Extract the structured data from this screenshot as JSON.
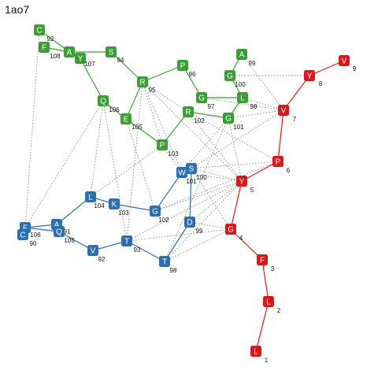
{
  "title": "1ao7",
  "colors": {
    "green": "#3a9e35",
    "red": "#d7191c",
    "blue": "#2c6fb0",
    "dotted": "#888888"
  },
  "nodes": [
    {
      "id": "g92",
      "letter": "C",
      "num": "92",
      "group": "green"
    },
    {
      "id": "g108",
      "letter": "F",
      "num": "108",
      "group": "green"
    },
    {
      "id": "g91",
      "letter": "A",
      "num": "91",
      "group": "green"
    },
    {
      "id": "g107",
      "letter": "Y",
      "num": "107",
      "group": "green"
    },
    {
      "id": "g94",
      "letter": "S",
      "num": "94",
      "group": "green"
    },
    {
      "id": "g96",
      "letter": "P",
      "num": "96",
      "group": "green"
    },
    {
      "id": "g95",
      "letter": "R",
      "num": "95",
      "group": "green"
    },
    {
      "id": "g106",
      "letter": "Q",
      "num": "106",
      "group": "green"
    },
    {
      "id": "g105",
      "letter": "E",
      "num": "105",
      "group": "green"
    },
    {
      "id": "g103",
      "letter": "P",
      "num": "103",
      "group": "green"
    },
    {
      "id": "g102",
      "letter": "R",
      "num": "102",
      "group": "green"
    },
    {
      "id": "g97",
      "letter": "G",
      "num": "97",
      "group": "green"
    },
    {
      "id": "g99",
      "letter": "A",
      "num": "99",
      "group": "green"
    },
    {
      "id": "g100",
      "letter": "G",
      "num": "100",
      "group": "green"
    },
    {
      "id": "g98",
      "letter": "L",
      "num": "98",
      "group": "green"
    },
    {
      "id": "g101",
      "letter": "G",
      "num": "101",
      "group": "green"
    },
    {
      "id": "r9",
      "letter": "V",
      "num": "9",
      "group": "red"
    },
    {
      "id": "r8",
      "letter": "Y",
      "num": "8",
      "group": "red"
    },
    {
      "id": "r7",
      "letter": "V",
      "num": "7",
      "group": "red"
    },
    {
      "id": "r6",
      "letter": "P",
      "num": "6",
      "group": "red"
    },
    {
      "id": "r5",
      "letter": "Y",
      "num": "5",
      "group": "red"
    },
    {
      "id": "r4",
      "letter": "G",
      "num": "4",
      "group": "red"
    },
    {
      "id": "r3",
      "letter": "F",
      "num": "3",
      "group": "red"
    },
    {
      "id": "r2",
      "letter": "L",
      "num": "2",
      "group": "red"
    },
    {
      "id": "r1",
      "letter": "L",
      "num": "1",
      "group": "red"
    },
    {
      "id": "b100",
      "letter": "S",
      "num": "100",
      "group": "blue"
    },
    {
      "id": "b101",
      "letter": "W",
      "num": "101",
      "group": "blue"
    },
    {
      "id": "b104",
      "letter": "L",
      "num": "104",
      "group": "blue"
    },
    {
      "id": "b103",
      "letter": "K",
      "num": "103",
      "group": "blue"
    },
    {
      "id": "b102",
      "letter": "G",
      "num": "102",
      "group": "blue"
    },
    {
      "id": "b99",
      "letter": "D",
      "num": "99",
      "group": "blue"
    },
    {
      "id": "b106",
      "letter": "F",
      "num": "106",
      "group": "blue"
    },
    {
      "id": "b90",
      "letter": "C",
      "num": "90",
      "group": "blue"
    },
    {
      "id": "b91",
      "letter": "A",
      "num": "91",
      "group": "blue"
    },
    {
      "id": "b105",
      "letter": "Q",
      "num": "105",
      "group": "blue"
    },
    {
      "id": "b92",
      "letter": "V",
      "num": "92",
      "group": "blue"
    },
    {
      "id": "b93",
      "letter": "T",
      "num": "93",
      "group": "blue"
    },
    {
      "id": "b98",
      "letter": "T",
      "num": "98",
      "group": "blue"
    }
  ],
  "solid_edges": [
    [
      "g92",
      "g91"
    ],
    [
      "g108",
      "g91"
    ],
    [
      "g91",
      "g107"
    ],
    [
      "g91",
      "g94"
    ],
    [
      "g107",
      "g106"
    ],
    [
      "g94",
      "g95"
    ],
    [
      "g95",
      "g96"
    ],
    [
      "g96",
      "g97"
    ],
    [
      "g97",
      "g98"
    ],
    [
      "g98",
      "g100"
    ],
    [
      "g100",
      "g99"
    ],
    [
      "g98",
      "g101"
    ],
    [
      "g101",
      "g102"
    ],
    [
      "g102",
      "g103"
    ],
    [
      "g103",
      "g105"
    ],
    [
      "g105",
      "g106"
    ],
    [
      "g95",
      "g105"
    ],
    [
      "r9",
      "r8"
    ],
    [
      "r8",
      "r7"
    ],
    [
      "r7",
      "r6"
    ],
    [
      "r6",
      "r5"
    ],
    [
      "r5",
      "r4"
    ],
    [
      "r4",
      "r3"
    ],
    [
      "r3",
      "r2"
    ],
    [
      "r2",
      "r1"
    ],
    [
      "b101",
      "b100"
    ],
    [
      "b101",
      "b102"
    ],
    [
      "b102",
      "b103"
    ],
    [
      "b103",
      "b104"
    ],
    [
      "b104",
      "b91"
    ],
    [
      "b91",
      "b106"
    ],
    [
      "b106",
      "b105"
    ],
    [
      "b105",
      "b92"
    ],
    [
      "b92",
      "b93"
    ],
    [
      "b93",
      "b98"
    ],
    [
      "b98",
      "b99"
    ],
    [
      "b99",
      "b100"
    ]
  ],
  "dotted_edges": [
    [
      "g92",
      "b106"
    ],
    [
      "g106",
      "b106"
    ],
    [
      "g106",
      "b104"
    ],
    [
      "g106",
      "b93"
    ],
    [
      "g105",
      "b102"
    ],
    [
      "g95",
      "g103"
    ],
    [
      "g95",
      "g102"
    ],
    [
      "g95",
      "b101"
    ],
    [
      "g95",
      "r5"
    ],
    [
      "g95",
      "b93"
    ],
    [
      "g103",
      "b104"
    ],
    [
      "g102",
      "r5"
    ],
    [
      "g102",
      "r6"
    ],
    [
      "g97",
      "r7"
    ],
    [
      "g100",
      "r8"
    ],
    [
      "g99",
      "r7"
    ],
    [
      "g98",
      "r7"
    ],
    [
      "g101",
      "r5"
    ],
    [
      "g101",
      "r7"
    ],
    [
      "g101",
      "b101"
    ],
    [
      "g101",
      "b98"
    ],
    [
      "g103",
      "b101"
    ],
    [
      "b100",
      "r5"
    ],
    [
      "b100",
      "r7"
    ],
    [
      "b100",
      "r6"
    ],
    [
      "b100",
      "r4"
    ],
    [
      "b101",
      "r5"
    ],
    [
      "b99",
      "r5"
    ],
    [
      "b99",
      "r4"
    ],
    [
      "b98",
      "r5"
    ],
    [
      "b98",
      "r4"
    ],
    [
      "b102",
      "r5"
    ],
    [
      "b102",
      "r6"
    ],
    [
      "b93",
      "r4"
    ],
    [
      "b93",
      "r5"
    ]
  ]
}
